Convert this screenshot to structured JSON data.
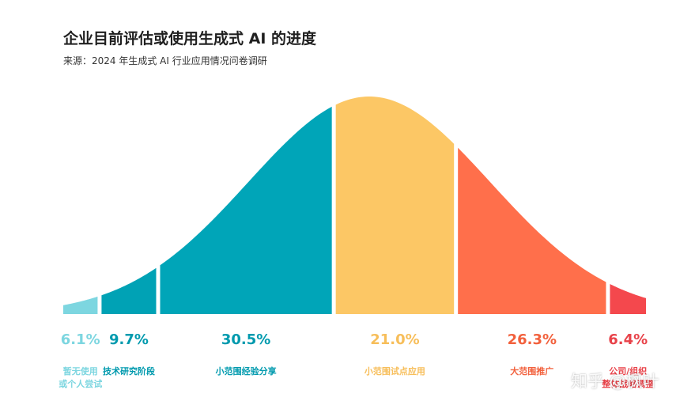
{
  "title": "企业目前评估或使用生成式 AI 的进度",
  "subtitle": "来源：2024 年生成式 AI 行业应用情况问卷调研",
  "watermark": "知乎 @枫叶",
  "chart_data": {
    "type": "area",
    "title": "企业目前评估或使用生成式 AI 的进度",
    "subtitle": "来源：2024 年生成式 AI 行业应用情况问卷调研",
    "segments": [
      {
        "label_lines": [
          "暂无使用",
          "或个人尝试"
        ],
        "value": 6.1,
        "value_label": "6.1%",
        "color": "#7DD6E0",
        "text_color": "#7DD6E0"
      },
      {
        "label_lines": [
          "技术研究阶段"
        ],
        "value": 9.7,
        "value_label": "9.7%",
        "color": "#00A2B5",
        "text_color": "#009AAE"
      },
      {
        "label_lines": [
          "小范围经验分享"
        ],
        "value": 30.5,
        "value_label": "30.5%",
        "color": "#00A5B8",
        "text_color": "#009AAE"
      },
      {
        "label_lines": [
          "小范围试点应用"
        ],
        "value": 21.0,
        "value_label": "21.0%",
        "color": "#FCC765",
        "text_color": "#F7BE5A"
      },
      {
        "label_lines": [
          "大范围推广"
        ],
        "value": 26.3,
        "value_label": "26.3%",
        "color": "#FF6F4B",
        "text_color": "#F2613D"
      },
      {
        "label_lines": [
          "公司/组织",
          "整体战略调整"
        ],
        "value": 6.4,
        "value_label": "6.4%",
        "color": "#F4484D",
        "text_color": "#E8434A"
      }
    ]
  }
}
